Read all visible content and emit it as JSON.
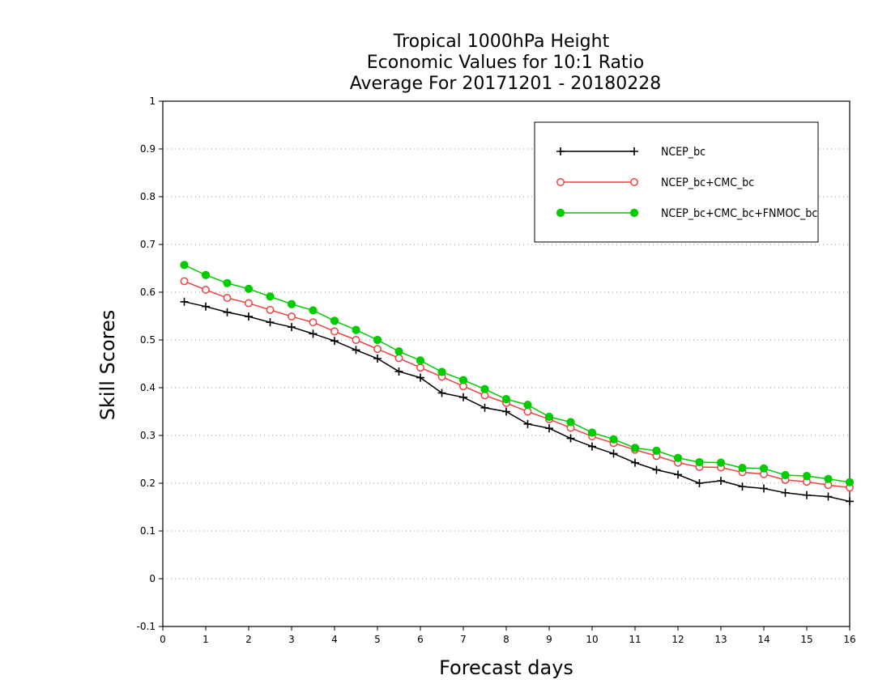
{
  "chart_data": {
    "type": "line",
    "title": [
      "Tropical 1000hPa Height",
      "Economic Values for 10:1 Ratio",
      "Average For 20171201 - 20180228"
    ],
    "xlabel": "Forecast days",
    "ylabel": "Skill Scores",
    "xlim": [
      0,
      16
    ],
    "ylim": [
      -0.1,
      1
    ],
    "xticks": [
      "0",
      "1",
      "2",
      "3",
      "4",
      "5",
      "6",
      "7",
      "8",
      "9",
      "10",
      "11",
      "12",
      "13",
      "14",
      "15",
      "16"
    ],
    "yticks": [
      "-0.1",
      "0",
      "0.1",
      "0.2",
      "0.3",
      "0.4",
      "0.5",
      "0.6",
      "0.7",
      "0.8",
      "0.9",
      "1"
    ],
    "grid": "horizontal dotted",
    "legend_position": "top-right",
    "x": [
      0.5,
      1,
      1.5,
      2,
      2.5,
      3,
      3.5,
      4,
      4.5,
      5,
      5.5,
      6,
      6.5,
      7,
      7.5,
      8,
      8.5,
      9,
      9.5,
      10,
      10.5,
      11,
      11.5,
      12,
      12.5,
      13,
      13.5,
      14,
      14.5,
      15,
      15.5,
      16
    ],
    "series": [
      {
        "name": "NCEP_bc",
        "color": "#000000",
        "marker": "plus",
        "values": [
          0.58,
          0.57,
          0.558,
          0.549,
          0.537,
          0.527,
          0.513,
          0.498,
          0.479,
          0.461,
          0.434,
          0.421,
          0.389,
          0.38,
          0.358,
          0.35,
          0.324,
          0.315,
          0.294,
          0.277,
          0.262,
          0.243,
          0.228,
          0.218,
          0.2,
          0.205,
          0.193,
          0.189,
          0.18,
          0.175,
          0.172,
          0.162
        ]
      },
      {
        "name": "NCEP_bc+CMC_bc",
        "color": "#f04040",
        "marker": "open-circle",
        "values": [
          0.623,
          0.605,
          0.588,
          0.577,
          0.563,
          0.549,
          0.537,
          0.518,
          0.5,
          0.481,
          0.462,
          0.442,
          0.423,
          0.403,
          0.384,
          0.368,
          0.35,
          0.334,
          0.316,
          0.298,
          0.284,
          0.27,
          0.257,
          0.243,
          0.234,
          0.233,
          0.223,
          0.219,
          0.207,
          0.203,
          0.196,
          0.191
        ]
      },
      {
        "name": "NCEP_bc+CMC_bc+FNMOC_bc",
        "color": "#00cc00",
        "marker": "filled-circle",
        "values": [
          0.657,
          0.636,
          0.619,
          0.607,
          0.591,
          0.575,
          0.562,
          0.54,
          0.521,
          0.5,
          0.476,
          0.457,
          0.433,
          0.416,
          0.397,
          0.376,
          0.364,
          0.339,
          0.328,
          0.306,
          0.292,
          0.274,
          0.268,
          0.253,
          0.244,
          0.243,
          0.232,
          0.231,
          0.217,
          0.215,
          0.209,
          0.202
        ]
      }
    ]
  }
}
